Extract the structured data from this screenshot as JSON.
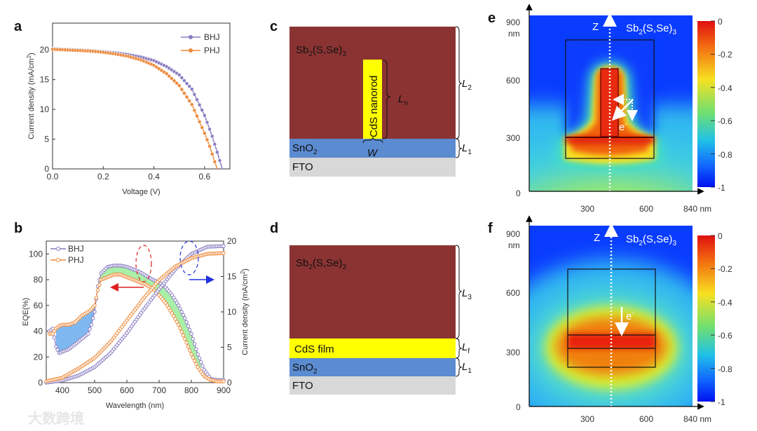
{
  "panel_labels": {
    "a": "a",
    "b": "b",
    "c": "c",
    "d": "d",
    "e": "e",
    "f": "f"
  },
  "watermark": "大数跨境",
  "colors": {
    "bhj": "#8a7cc0",
    "phj": "#ee8a3a",
    "sb": "#8b3333",
    "sno2": "#5b8bd0",
    "fto": "#d8d8d8",
    "cds": "#ffff00",
    "fill_blue": "#7fb8f0",
    "fill_green": "#a8f0a8"
  },
  "chart_data": [
    {
      "id": "a",
      "type": "line",
      "xlabel": "Voltage (V)",
      "ylabel": "Current density (mA/cm",
      "ylabel_sup": "2",
      "ylabel_end": ")",
      "xlim": [
        0,
        0.7
      ],
      "ylim": [
        0,
        24.5
      ],
      "xticks": [
        "0.0",
        "0.2",
        "0.4",
        "0.6"
      ],
      "xtick_values": [
        0,
        0.2,
        0.4,
        0.6
      ],
      "yticks": [
        "0",
        "5",
        "10",
        "15",
        "20"
      ],
      "ytick_values": [
        0,
        5,
        10,
        15,
        20
      ],
      "legend": "top-right",
      "series": [
        {
          "name": "BHJ",
          "x": [
            0,
            0.05,
            0.1,
            0.15,
            0.2,
            0.25,
            0.3,
            0.35,
            0.4,
            0.45,
            0.5,
            0.55,
            0.6,
            0.63,
            0.65,
            0.67
          ],
          "y": [
            20.2,
            20.1,
            20.0,
            19.9,
            19.7,
            19.5,
            19.2,
            18.8,
            18.2,
            17.2,
            15.8,
            13.4,
            9.0,
            5.5,
            2.8,
            0
          ]
        },
        {
          "name": "PHJ",
          "x": [
            0,
            0.05,
            0.1,
            0.15,
            0.2,
            0.25,
            0.3,
            0.35,
            0.4,
            0.45,
            0.5,
            0.55,
            0.6,
            0.62,
            0.64,
            0.65
          ],
          "y": [
            20.1,
            20.0,
            19.9,
            19.8,
            19.6,
            19.3,
            18.9,
            18.3,
            17.4,
            16.0,
            14.0,
            10.8,
            6.0,
            3.8,
            1.2,
            0
          ]
        }
      ]
    },
    {
      "id": "b",
      "type": "line",
      "xlabel": "Wavelength (nm)",
      "ylabel": "EQE(%)",
      "ylabel_right": "Current density (mA/cm",
      "ylabel_right_sup": "2",
      "ylabel_right_end": ")",
      "xlim": [
        350,
        900
      ],
      "ylim": [
        0,
        110
      ],
      "ylim_right": [
        0,
        20
      ],
      "xticks": [
        "400",
        "500",
        "600",
        "700",
        "800",
        "900"
      ],
      "xtick_values": [
        400,
        500,
        600,
        700,
        800,
        900
      ],
      "yticks": [
        "0",
        "20",
        "40",
        "60",
        "80",
        "100"
      ],
      "ytick_values": [
        0,
        20,
        40,
        60,
        80,
        100
      ],
      "yticks_right": [
        "0",
        "5",
        "10",
        "15",
        "20"
      ],
      "ytick_right_values": [
        0,
        5,
        10,
        15,
        20
      ],
      "legend": "top-left",
      "eqe_series": [
        {
          "name": "BHJ",
          "x": [
            360,
            370,
            380,
            390,
            400,
            420,
            440,
            460,
            480,
            490,
            500,
            510,
            520,
            540,
            560,
            580,
            600,
            620,
            640,
            660,
            680,
            700,
            720,
            740,
            760,
            780,
            800,
            820,
            840,
            860,
            880,
            900
          ],
          "y": [
            40,
            42,
            28,
            23,
            24,
            26,
            30,
            34,
            38,
            45,
            55,
            75,
            85,
            90,
            91,
            91,
            90,
            88,
            86,
            83,
            80,
            78,
            74,
            68,
            60,
            50,
            38,
            22,
            10,
            3,
            2,
            2
          ]
        },
        {
          "name": "PHJ",
          "x": [
            360,
            370,
            380,
            390,
            400,
            420,
            440,
            460,
            480,
            490,
            500,
            510,
            520,
            540,
            560,
            580,
            600,
            620,
            640,
            660,
            680,
            700,
            720,
            740,
            760,
            780,
            800,
            820,
            840,
            860,
            880,
            900
          ],
          "y": [
            38,
            38,
            42,
            44,
            45,
            45,
            47,
            52,
            55,
            57,
            60,
            72,
            80,
            82,
            84,
            84,
            82,
            80,
            78,
            76,
            73,
            68,
            62,
            54,
            45,
            34,
            22,
            12,
            5,
            2,
            1,
            1
          ]
        }
      ],
      "jsc_series": [
        {
          "name": "BHJ",
          "x": [
            350,
            400,
            450,
            500,
            550,
            600,
            650,
            700,
            750,
            800,
            850,
            900
          ],
          "y": [
            0,
            0.3,
            1.0,
            2.2,
            4.2,
            7.0,
            10.2,
            13.2,
            16.0,
            18.2,
            19.2,
            19.3
          ]
        },
        {
          "name": "PHJ",
          "x": [
            350,
            400,
            450,
            500,
            550,
            600,
            650,
            700,
            750,
            800,
            850,
            900
          ],
          "y": [
            0.2,
            0.7,
            2.0,
            3.5,
            5.8,
            8.8,
            11.8,
            14.5,
            16.4,
            17.6,
            18.2,
            18.3
          ]
        }
      ],
      "fill_ranges": [
        {
          "from": 380,
          "to": 505,
          "color": "blue"
        },
        {
          "from": 510,
          "to": 830,
          "color": "green"
        }
      ]
    }
  ],
  "diagram_c": {
    "sb_label": [
      "Sb",
      "2",
      "(S,Se)",
      "3"
    ],
    "rod_label": "CdS nanorod",
    "sno2": [
      "SnO",
      "2"
    ],
    "fto": "FTO",
    "L2": [
      "L",
      "2"
    ],
    "L1": [
      "L",
      "1"
    ],
    "Ln": [
      "L",
      "n"
    ],
    "W": "W"
  },
  "diagram_d": {
    "sb_label": [
      "Sb",
      "2",
      "(S,Se)",
      "3"
    ],
    "film_label": "CdS film",
    "sno2": [
      "SnO",
      "2"
    ],
    "fto": "FTO",
    "L3": [
      "L",
      "3"
    ],
    "Lf": [
      "L",
      "f"
    ],
    "L1": [
      "L",
      "1"
    ]
  },
  "heatmap_e": {
    "type": "heatmap",
    "yticks": [
      "900",
      "600",
      "300",
      "0"
    ],
    "y_unit": "nm",
    "xticks": [
      "300",
      "600",
      "840 nm"
    ],
    "z_label": "Z",
    "sb_label": [
      "Sb",
      "2",
      "(S,Se)",
      "3"
    ],
    "electron": [
      "e",
      "-"
    ],
    "colorbar_ticks": [
      "0",
      "-0.2",
      "-0.4",
      "-0.6",
      "-0.8",
      "-1"
    ],
    "colorbar_range": [
      -1,
      0
    ]
  },
  "heatmap_f": {
    "type": "heatmap",
    "yticks": [
      "900",
      "600",
      "300",
      "0"
    ],
    "y_unit": "nm",
    "xticks": [
      "300",
      "600",
      "840 nm"
    ],
    "z_label": "Z",
    "sb_label": [
      "Sb",
      "2",
      "(S,Se)",
      "3"
    ],
    "electron": [
      "e",
      "-"
    ],
    "colorbar_ticks": [
      "0",
      "-0.2",
      "-0.4",
      "-0.6",
      "-0.8",
      "-1"
    ],
    "colorbar_range": [
      -1,
      0
    ]
  }
}
